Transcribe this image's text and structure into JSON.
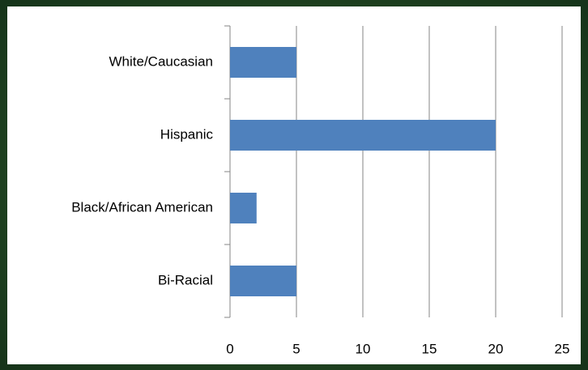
{
  "chart_data": {
    "type": "bar",
    "orientation": "horizontal",
    "categories": [
      "White/Caucasian",
      "Hispanic",
      "Black/African American",
      "Bi-Racial"
    ],
    "values": [
      5,
      20,
      2,
      5
    ],
    "color": "#4f81bd",
    "xlim": [
      0,
      25
    ],
    "xticks": [
      0,
      5,
      10,
      15,
      20,
      25
    ],
    "grid": true
  }
}
